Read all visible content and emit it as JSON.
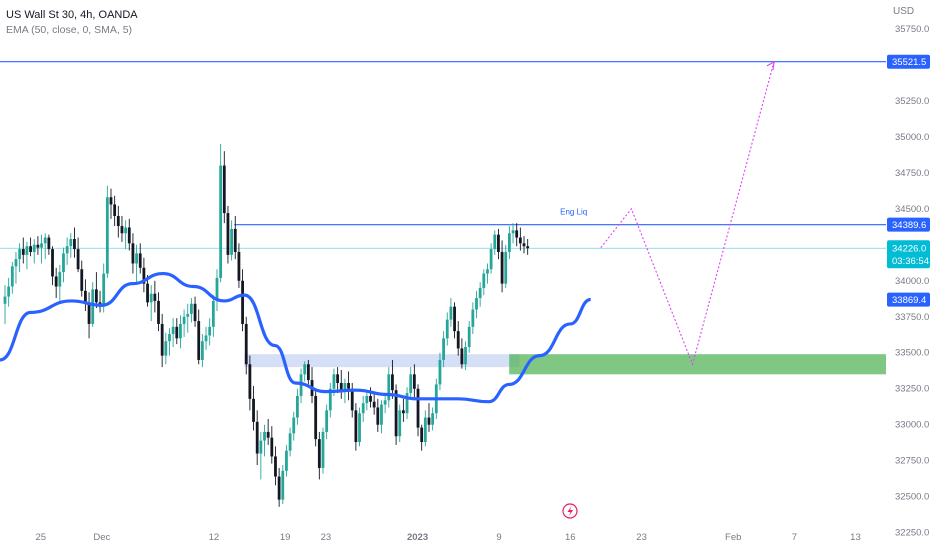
{
  "header": {
    "symbol_line": "US Wall St 30, 4h, OANDA",
    "indicator_line": "EMA (50, close, 0, SMA, 5)"
  },
  "price_axis": {
    "currency": "USD",
    "ticks": [
      "35750.0",
      "35500.0",
      "35250.0",
      "35000.0",
      "34750.0",
      "34500.0",
      "34250.0",
      "34000.0",
      "33750.0",
      "33500.0",
      "33250.0",
      "33000.0",
      "32750.0",
      "32500.0",
      "32250.0"
    ],
    "labels": {
      "level_top": "35521.5",
      "level_mid": "34389.6",
      "last_price": "34226.0",
      "countdown": "03:36:54",
      "ema": "33869.4"
    }
  },
  "time_axis": {
    "labels": [
      "25",
      "Dec",
      "12",
      "19",
      "23",
      "2023",
      "9",
      "16",
      "23",
      "Feb",
      "7",
      "13"
    ]
  },
  "annotations": {
    "liquidity_label": "Eng Liq"
  },
  "colors": {
    "up": "#26a69a",
    "down": "#131722",
    "ema": "#2962ff",
    "level_line": "#2962ff",
    "last_price": "#00bcd4",
    "projection": "#e040fb",
    "demand_zone": "#4caf50",
    "supply_zone": "#b9c9f0",
    "text_muted": "#787b86"
  },
  "chart_data": {
    "type": "candlestick",
    "instrument": "US Wall St 30",
    "timeframe": "4h",
    "ylim": [
      32130,
      35950
    ],
    "xlim": [
      "2022-11-21",
      "2023-02-16"
    ],
    "candles": {
      "start": "2022-11-21",
      "count": 145,
      "ohlc": [
        [
          33840,
          33970,
          33700,
          33890
        ],
        [
          33890,
          34020,
          33820,
          33960
        ],
        [
          33960,
          34130,
          33910,
          34100
        ],
        [
          34100,
          34200,
          33980,
          34150
        ],
        [
          34150,
          34260,
          34060,
          34220
        ],
        [
          34220,
          34300,
          34120,
          34180
        ],
        [
          34180,
          34270,
          34080,
          34240
        ],
        [
          34240,
          34300,
          34170,
          34200
        ],
        [
          34200,
          34290,
          34120,
          34250
        ],
        [
          34250,
          34310,
          34180,
          34230
        ],
        [
          34230,
          34320,
          34120,
          34260
        ],
        [
          34260,
          34330,
          34150,
          34300
        ],
        [
          34300,
          34320,
          34180,
          34220
        ],
        [
          34220,
          34240,
          33970,
          34030
        ],
        [
          34030,
          34090,
          33880,
          33960
        ],
        [
          33960,
          34110,
          33860,
          34060
        ],
        [
          34060,
          34230,
          33990,
          34190
        ],
        [
          34190,
          34300,
          34110,
          34240
        ],
        [
          34240,
          34330,
          34160,
          34290
        ],
        [
          34290,
          34370,
          34160,
          34220
        ],
        [
          34220,
          34300,
          34060,
          34080
        ],
        [
          34080,
          34140,
          33890,
          33930
        ],
        [
          33930,
          34010,
          33790,
          33840
        ],
        [
          33840,
          33920,
          33600,
          33700
        ],
        [
          33700,
          33990,
          33680,
          33940
        ],
        [
          33940,
          34060,
          33810,
          33850
        ],
        [
          33850,
          33930,
          33780,
          33820
        ],
        [
          33820,
          34120,
          33780,
          34050
        ],
        [
          34050,
          34660,
          34020,
          34580
        ],
        [
          34580,
          34640,
          34430,
          34530
        ],
        [
          34530,
          34590,
          34380,
          34450
        ],
        [
          34450,
          34520,
          34300,
          34380
        ],
        [
          34380,
          34450,
          34270,
          34330
        ],
        [
          34330,
          34420,
          34220,
          34370
        ],
        [
          34370,
          34430,
          34210,
          34260
        ],
        [
          34260,
          34330,
          34050,
          34120
        ],
        [
          34120,
          34250,
          33990,
          34190
        ],
        [
          34190,
          34260,
          34050,
          34090
        ],
        [
          34090,
          34160,
          33920,
          33980
        ],
        [
          33980,
          34040,
          33820,
          33850
        ],
        [
          33850,
          33970,
          33720,
          33910
        ],
        [
          33910,
          34000,
          33780,
          33860
        ],
        [
          33860,
          33920,
          33650,
          33700
        ],
        [
          33700,
          33770,
          33400,
          33480
        ],
        [
          33480,
          33640,
          33420,
          33580
        ],
        [
          33580,
          33670,
          33480,
          33630
        ],
        [
          33630,
          33740,
          33540,
          33680
        ],
        [
          33680,
          33740,
          33560,
          33600
        ],
        [
          33600,
          33760,
          33530,
          33700
        ],
        [
          33700,
          33800,
          33610,
          33750
        ],
        [
          33750,
          33840,
          33640,
          33770
        ],
        [
          33770,
          33880,
          33710,
          33840
        ],
        [
          33840,
          33890,
          33680,
          33720
        ],
        [
          33720,
          33800,
          33420,
          33450
        ],
        [
          33450,
          33630,
          33400,
          33580
        ],
        [
          33580,
          33680,
          33520,
          33620
        ],
        [
          33620,
          33740,
          33550,
          33680
        ],
        [
          33680,
          33900,
          33610,
          33860
        ],
        [
          33860,
          34080,
          33790,
          34020
        ],
        [
          34020,
          34950,
          33990,
          34800
        ],
        [
          34800,
          34900,
          34400,
          34470
        ],
        [
          34470,
          34520,
          34120,
          34180
        ],
        [
          34180,
          34420,
          34140,
          34360
        ],
        [
          34360,
          34450,
          34150,
          34200
        ],
        [
          34200,
          34260,
          33950,
          34000
        ],
        [
          34000,
          34080,
          33650,
          33700
        ],
        [
          33700,
          33750,
          33350,
          33420
        ],
        [
          33420,
          33480,
          33100,
          33180
        ],
        [
          33180,
          33270,
          32960,
          33020
        ],
        [
          33020,
          33100,
          32720,
          32800
        ],
        [
          32800,
          32950,
          32620,
          32890
        ],
        [
          32890,
          33000,
          32780,
          32950
        ],
        [
          32950,
          33040,
          32860,
          32910
        ],
        [
          32910,
          32990,
          32730,
          32780
        ],
        [
          32780,
          32850,
          32580,
          32640
        ],
        [
          32640,
          32700,
          32430,
          32480
        ],
        [
          32480,
          32720,
          32450,
          32680
        ],
        [
          32680,
          32860,
          32640,
          32820
        ],
        [
          32820,
          32980,
          32780,
          32940
        ],
        [
          32940,
          33090,
          32890,
          33050
        ],
        [
          33050,
          33250,
          33000,
          33200
        ],
        [
          33200,
          33390,
          33150,
          33350
        ],
        [
          33350,
          33440,
          33300,
          33420
        ],
        [
          33420,
          33450,
          33280,
          33310
        ],
        [
          33310,
          33400,
          33150,
          33200
        ],
        [
          33200,
          33240,
          32850,
          32900
        ],
        [
          32900,
          32950,
          32620,
          32700
        ],
        [
          32700,
          32980,
          32660,
          32950
        ],
        [
          32950,
          33140,
          32900,
          33100
        ],
        [
          33100,
          33290,
          33050,
          33250
        ],
        [
          33250,
          33390,
          33200,
          33350
        ],
        [
          33350,
          33400,
          33220,
          33290
        ],
        [
          33290,
          33380,
          33180,
          33230
        ],
        [
          33230,
          33320,
          33150,
          33290
        ],
        [
          33290,
          33370,
          33170,
          33250
        ],
        [
          33250,
          33290,
          33050,
          33100
        ],
        [
          33100,
          33150,
          32820,
          32880
        ],
        [
          32880,
          33120,
          32850,
          33080
        ],
        [
          33080,
          33200,
          33020,
          33150
        ],
        [
          33150,
          33240,
          33100,
          33200
        ],
        [
          33200,
          33260,
          33120,
          33160
        ],
        [
          33160,
          33230,
          33070,
          33120
        ],
        [
          33120,
          33180,
          32950,
          33000
        ],
        [
          33000,
          33170,
          32940,
          33140
        ],
        [
          33140,
          33210,
          33080,
          33170
        ],
        [
          33170,
          33400,
          33120,
          33350
        ],
        [
          33350,
          33450,
          33180,
          33240
        ],
        [
          33240,
          33280,
          32860,
          32920
        ],
        [
          32920,
          33140,
          32880,
          33100
        ],
        [
          33100,
          33180,
          33020,
          33080
        ],
        [
          33080,
          33260,
          33040,
          33220
        ],
        [
          33220,
          33400,
          33180,
          33350
        ],
        [
          33350,
          33420,
          33180,
          33250
        ],
        [
          33250,
          33280,
          32920,
          32980
        ],
        [
          32980,
          33000,
          32820,
          32880
        ],
        [
          32880,
          33100,
          32850,
          33050
        ],
        [
          33050,
          33150,
          32950,
          33000
        ],
        [
          33000,
          33120,
          32960,
          33080
        ],
        [
          33080,
          33320,
          33040,
          33280
        ],
        [
          33280,
          33500,
          33240,
          33450
        ],
        [
          33450,
          33650,
          33400,
          33600
        ],
        [
          33600,
          33780,
          33550,
          33730
        ],
        [
          33730,
          33880,
          33680,
          33820
        ],
        [
          33820,
          33850,
          33600,
          33650
        ],
        [
          33650,
          33720,
          33480,
          33530
        ],
        [
          33530,
          33600,
          33390,
          33420
        ],
        [
          33420,
          33580,
          33380,
          33540
        ],
        [
          33540,
          33720,
          33500,
          33680
        ],
        [
          33680,
          33850,
          33630,
          33800
        ],
        [
          33800,
          33930,
          33740,
          33880
        ],
        [
          33880,
          33990,
          33820,
          33950
        ],
        [
          33950,
          34080,
          33900,
          34050
        ],
        [
          34050,
          34120,
          33980,
          34080
        ],
        [
          34080,
          34260,
          34050,
          34220
        ],
        [
          34220,
          34350,
          34180,
          34320
        ],
        [
          34320,
          34360,
          34150,
          34200
        ],
        [
          34200,
          34280,
          33920,
          33980
        ],
        [
          33980,
          34250,
          33950,
          34200
        ],
        [
          34200,
          34380,
          34150,
          34330
        ],
        [
          34330,
          34400,
          34260,
          34350
        ],
        [
          34350,
          34400,
          34240,
          34300
        ],
        [
          34300,
          34370,
          34210,
          34260
        ],
        [
          34260,
          34310,
          34190,
          34240
        ],
        [
          34240,
          34290,
          34180,
          34226
        ]
      ]
    },
    "ema": {
      "label": "EMA (50, close, 0, SMA, 5)",
      "points": [
        [
          "2022-11-21",
          33450
        ],
        [
          "2022-11-24",
          33780
        ],
        [
          "2022-11-28",
          33860
        ],
        [
          "2022-12-01",
          33830
        ],
        [
          "2022-12-04",
          33980
        ],
        [
          "2022-12-07",
          34050
        ],
        [
          "2022-12-10",
          33960
        ],
        [
          "2022-12-13",
          33860
        ],
        [
          "2022-12-15",
          33900
        ],
        [
          "2022-12-18",
          33550
        ],
        [
          "2022-12-20",
          33290
        ],
        [
          "2022-12-23",
          33230
        ],
        [
          "2022-12-26",
          33240
        ],
        [
          "2022-12-29",
          33210
        ],
        [
          "2023-01-01",
          33180
        ],
        [
          "2023-01-05",
          33180
        ],
        [
          "2023-01-08",
          33160
        ],
        [
          "2023-01-10",
          33280
        ],
        [
          "2023-01-13",
          33480
        ],
        [
          "2023-01-16",
          33700
        ],
        [
          "2023-01-18",
          33870
        ]
      ]
    },
    "levels": [
      {
        "price": 35521.5,
        "label": "35521.5",
        "from": "2022-11-21"
      },
      {
        "price": 34389.6,
        "label": "34389.6",
        "from": "2022-12-14"
      }
    ],
    "last_price": 34226.0,
    "zones": [
      {
        "kind": "supply",
        "from": "2022-12-15",
        "to": "2023-01-11",
        "top": 33490,
        "bottom": 33400
      },
      {
        "kind": "demand",
        "from": "2023-01-10",
        "to": "2023-02-16",
        "top": 33490,
        "bottom": 33350
      }
    ],
    "projection_path": [
      [
        "2023-01-19",
        34230
      ],
      [
        "2023-01-22",
        34500
      ],
      [
        "2023-01-28",
        33420
      ],
      [
        "2023-02-05",
        35520
      ]
    ],
    "time_ticks": [
      "25",
      "Dec",
      "12",
      "19",
      "23",
      "2023",
      "9",
      "16",
      "23",
      "Feb",
      "7",
      "13"
    ],
    "price_ticks": [
      35750,
      35500,
      35250,
      35000,
      34750,
      34500,
      34250,
      34000,
      33750,
      33500,
      33250,
      33000,
      32750,
      32500,
      32250
    ]
  }
}
